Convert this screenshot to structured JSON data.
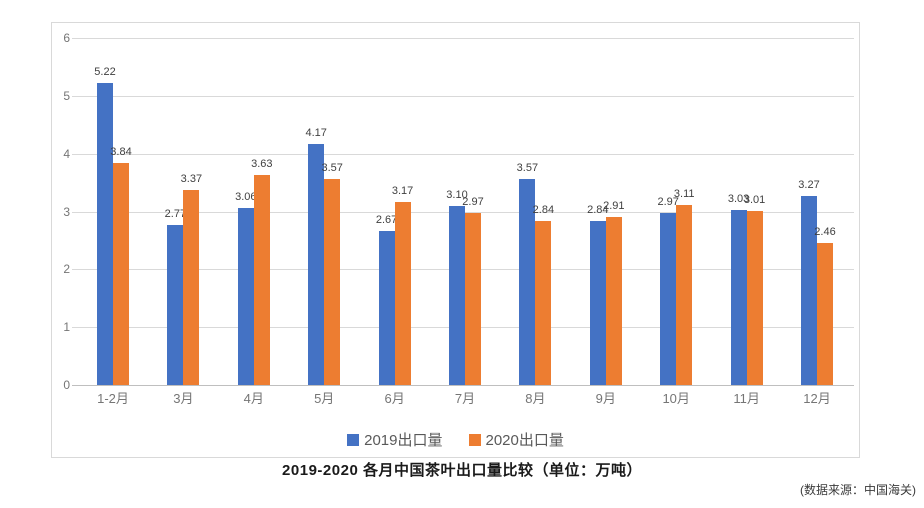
{
  "chart_data": {
    "type": "bar",
    "title": "2019-2020 各月中国茶叶出口量比较（单位：万吨）",
    "source": "(数据来源：中国海关)",
    "categories": [
      "1-2月",
      "3月",
      "4月",
      "5月",
      "6月",
      "7月",
      "8月",
      "9月",
      "10月",
      "11月",
      "12月"
    ],
    "series": [
      {
        "name": "2019出口量",
        "color": "#4472C4",
        "values": [
          5.22,
          2.77,
          3.06,
          4.17,
          2.67,
          3.1,
          3.57,
          2.84,
          2.97,
          3.03,
          3.27
        ]
      },
      {
        "name": "2020出口量",
        "color": "#ED7D31",
        "values": [
          3.84,
          3.37,
          3.63,
          3.57,
          3.17,
          2.97,
          2.84,
          2.91,
          3.11,
          3.01,
          2.46
        ]
      }
    ],
    "ylim": [
      0,
      6
    ],
    "yticks": [
      0,
      1,
      2,
      3,
      4,
      5,
      6
    ],
    "grid": "on",
    "legend_position": "bottom",
    "value_label_decimals": 2,
    "colors": {
      "grid": "#D9D9D9",
      "zero_line": "#BFBFBF",
      "frame": "#D9D9D9",
      "axis_text": "#757575",
      "value_text": "#404040",
      "legend_text": "#595959",
      "background": "#FFFFFF"
    }
  }
}
